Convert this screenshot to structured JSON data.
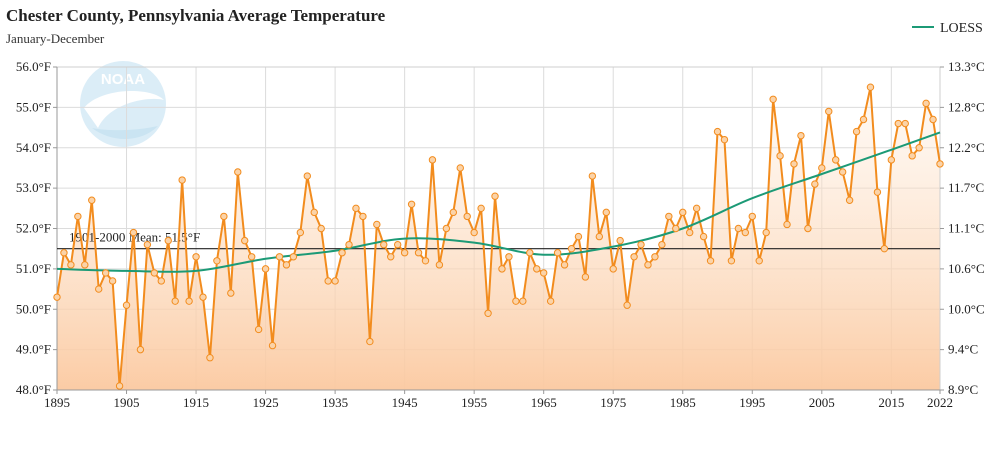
{
  "chart_data": {
    "type": "line",
    "title": "Chester County, Pennsylvania Average Temperature",
    "subtitle": "January-December",
    "xlabel": "",
    "ylabel": "",
    "x_ticks": [
      1895,
      1905,
      1915,
      1925,
      1935,
      1945,
      1955,
      1965,
      1975,
      1985,
      1995,
      2005,
      2015,
      2022
    ],
    "y_ticks": [
      "48.0°F",
      "49.0°F",
      "50.0°F",
      "51.0°F",
      "52.0°F",
      "53.0°F",
      "54.0°F",
      "55.0°F",
      "56.0°F"
    ],
    "y2_ticks": [
      "8.9°C",
      "9.4°C",
      "10.0°C",
      "10.6°C",
      "11.1°C",
      "11.7°C",
      "12.2°C",
      "12.8°C",
      "13.3°C"
    ],
    "xlim": [
      1895,
      2022
    ],
    "ylim": [
      48,
      56
    ],
    "grid": true,
    "legend_position": "top-right",
    "mean_line": {
      "value": 51.5,
      "label": "1901-2000 Mean: 51.5°F"
    },
    "series": [
      {
        "name": "",
        "color": "#f28c1e",
        "x": [
          1895,
          1896,
          1897,
          1898,
          1899,
          1900,
          1901,
          1902,
          1903,
          1904,
          1905,
          1906,
          1907,
          1908,
          1909,
          1910,
          1911,
          1912,
          1913,
          1914,
          1915,
          1916,
          1917,
          1918,
          1919,
          1920,
          1921,
          1922,
          1923,
          1924,
          1925,
          1926,
          1927,
          1928,
          1929,
          1930,
          1931,
          1932,
          1933,
          1934,
          1935,
          1936,
          1937,
          1938,
          1939,
          1940,
          1941,
          1942,
          1943,
          1944,
          1945,
          1946,
          1947,
          1948,
          1949,
          1950,
          1951,
          1952,
          1953,
          1954,
          1955,
          1956,
          1957,
          1958,
          1959,
          1960,
          1961,
          1962,
          1963,
          1964,
          1965,
          1966,
          1967,
          1968,
          1969,
          1970,
          1971,
          1972,
          1973,
          1974,
          1975,
          1976,
          1977,
          1978,
          1979,
          1980,
          1981,
          1982,
          1983,
          1984,
          1985,
          1986,
          1987,
          1988,
          1989,
          1990,
          1991,
          1992,
          1993,
          1994,
          1995,
          1996,
          1997,
          1998,
          1999,
          2000,
          2001,
          2002,
          2003,
          2004,
          2005,
          2006,
          2007,
          2008,
          2009,
          2010,
          2011,
          2012,
          2013,
          2014,
          2015,
          2016,
          2017,
          2018,
          2019,
          2020,
          2021,
          2022
        ],
        "values": [
          50.3,
          51.4,
          51.1,
          52.3,
          51.1,
          52.7,
          50.5,
          50.9,
          50.7,
          48.1,
          50.1,
          51.9,
          49.0,
          51.6,
          50.9,
          50.7,
          51.7,
          50.2,
          53.2,
          50.2,
          51.3,
          50.3,
          48.8,
          51.2,
          52.3,
          50.4,
          53.4,
          51.7,
          51.3,
          49.5,
          51.0,
          49.1,
          51.3,
          51.1,
          51.3,
          51.9,
          53.3,
          52.4,
          52.0,
          50.7,
          50.7,
          51.4,
          51.6,
          52.5,
          52.3,
          49.2,
          52.1,
          51.6,
          51.3,
          51.6,
          51.4,
          52.6,
          51.4,
          51.2,
          53.7,
          51.1,
          52.0,
          52.4,
          53.5,
          52.3,
          51.9,
          52.5,
          49.9,
          52.8,
          51.0,
          51.3,
          50.2,
          50.2,
          51.4,
          51.0,
          50.9,
          50.2,
          51.4,
          51.1,
          51.5,
          51.8,
          50.8,
          53.3,
          51.8,
          52.4,
          51.0,
          51.7,
          50.1,
          51.3,
          51.6,
          51.1,
          51.3,
          51.6,
          52.3,
          52.0,
          52.4,
          51.9,
          52.5,
          51.8,
          51.2,
          54.4,
          54.2,
          51.2,
          52.0,
          51.9,
          52.3,
          51.2,
          51.9,
          55.2,
          53.8,
          52.1,
          53.6,
          54.3,
          52.0,
          53.1,
          53.5,
          54.9,
          53.7,
          53.4,
          52.7,
          54.4,
          54.7,
          55.5,
          52.9,
          51.5,
          53.7,
          54.6,
          54.6,
          53.8,
          54.0,
          55.1,
          54.7,
          53.6
        ]
      },
      {
        "name": "LOESS",
        "color": "#1c9a76",
        "x": [
          1895,
          1905,
          1915,
          1925,
          1935,
          1945,
          1955,
          1965,
          1975,
          1985,
          1995,
          2005,
          2015,
          2022
        ],
        "values": [
          51.0,
          50.95,
          50.95,
          51.25,
          51.45,
          51.75,
          51.65,
          51.35,
          51.55,
          52.0,
          52.75,
          53.35,
          53.95,
          54.38
        ]
      }
    ]
  }
}
